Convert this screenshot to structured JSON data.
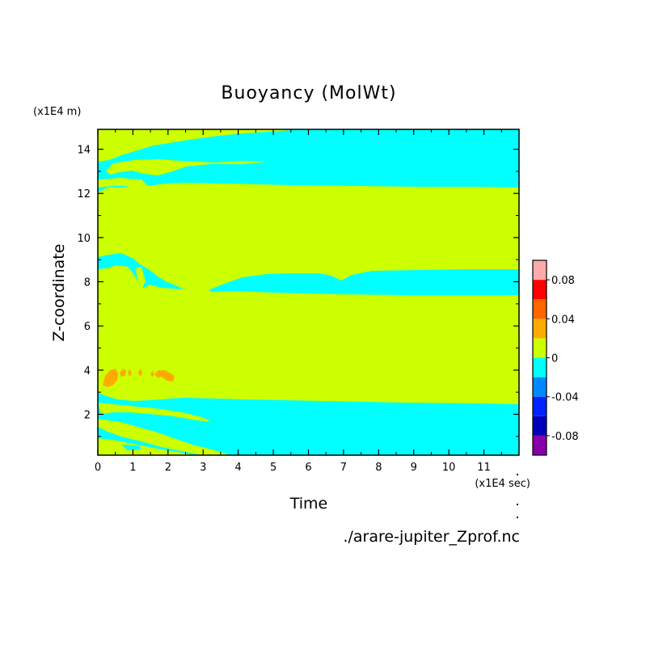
{
  "chart_data": {
    "type": "heatmap",
    "title": "Buoyancy (MolWt)",
    "xlabel": "Time",
    "ylabel": "Z-coordinate",
    "x_units": "(x1E4 sec)",
    "y_units": "(x1E4 m)",
    "source_file": "./arare-jupiter_Zprof.nc",
    "xlim": [
      0,
      12
    ],
    "ylim": [
      0.15,
      14.9
    ],
    "x_ticks": [
      "0",
      "1",
      "2",
      "3",
      "4",
      "5",
      "6",
      "7",
      "8",
      "9",
      "10",
      "11"
    ],
    "y_ticks": [
      "2",
      "4",
      "6",
      "8",
      "10",
      "12",
      "14"
    ],
    "colorbar": {
      "levels": [
        -0.1,
        -0.08,
        -0.06,
        -0.04,
        -0.02,
        0,
        0.02,
        0.04,
        0.06,
        0.08,
        0.1
      ],
      "tick_labels": [
        "0.08",
        "0.04",
        "0",
        "-0.04",
        "-0.08"
      ],
      "tick_values": [
        0.08,
        0.04,
        0,
        -0.04,
        -0.08
      ],
      "colors": [
        "#8800a8",
        "#0000bb",
        "#0022ff",
        "#0088ff",
        "#00ffff",
        "#ccff00",
        "#ffaa00",
        "#ff6600",
        "#ff0000",
        "#ffaaaa"
      ]
    },
    "background_level": "0 to 0.02",
    "regions": [
      {
        "level": "-0.02 to 0",
        "label": "negative band, top",
        "x": [
          0,
          11.95
        ],
        "y": [
          12.3,
          14.9
        ]
      },
      {
        "level": "-0.02 to 0",
        "label": "negative band, z~8",
        "x": [
          0,
          11.95
        ],
        "y": [
          7.4,
          8.4
        ]
      },
      {
        "level": "-0.02 to 0",
        "label": "negative band, lower",
        "x": [
          0,
          11.95
        ],
        "y": [
          0.15,
          2.6
        ]
      },
      {
        "level": "0.02 to 0.04",
        "label": "positive patches",
        "x": [
          0.2,
          2.3
        ],
        "y": [
          3.3,
          4.0
        ]
      }
    ]
  }
}
